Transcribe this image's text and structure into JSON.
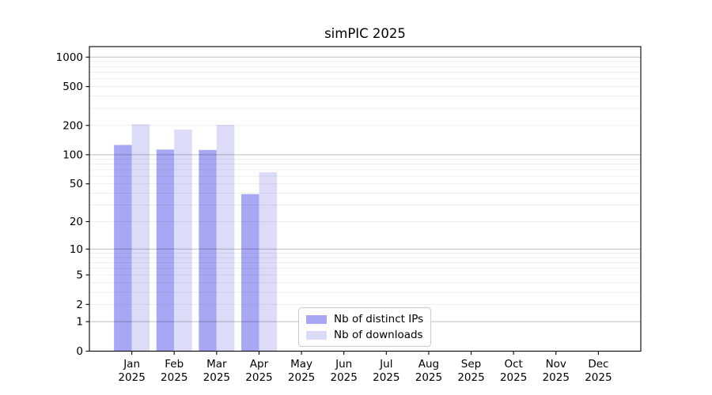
{
  "title": "simPIC 2025",
  "chart_data": {
    "type": "bar",
    "title": "simPIC 2025",
    "categories": [
      "Jan",
      "Feb",
      "Mar",
      "Apr",
      "May",
      "Jun",
      "Jul",
      "Aug",
      "Sep",
      "Oct",
      "Nov",
      "Dec"
    ],
    "year_label": "2025",
    "series": [
      {
        "name": "Nb of distinct IPs",
        "color": "#a7a7f4",
        "values": [
          126,
          113,
          112,
          39,
          0,
          0,
          0,
          0,
          0,
          0,
          0,
          0
        ]
      },
      {
        "name": "Nb of downloads",
        "color": "#dcdcf9",
        "values": [
          206,
          181,
          203,
          66,
          0,
          0,
          0,
          0,
          0,
          0,
          0,
          0
        ]
      }
    ],
    "yscale": "log1p",
    "ytick_values": [
      0,
      1,
      2,
      5,
      10,
      20,
      50,
      100,
      200,
      500,
      1000
    ],
    "ymax": 1280,
    "xlabel": "",
    "ylabel": "",
    "grid": true,
    "legend_position": "lower center",
    "colors": {
      "major_grid": "rgba(0,0,0,0.25)",
      "minor_grid": "rgba(0,0,0,0.075)",
      "axis": "#000000",
      "text": "#000000",
      "background": "#ffffff"
    }
  }
}
